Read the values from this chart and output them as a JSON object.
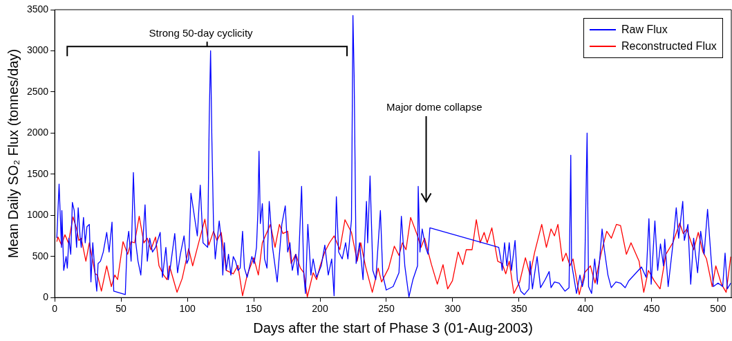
{
  "chart_data": {
    "type": "line",
    "xlabel": "Days after the start of Phase 3 (01-Aug-2003)",
    "ylabel": "Mean Daily SO₂ Flux (tonnes/day)",
    "xlim": [
      0,
      510
    ],
    "ylim": [
      0,
      3500
    ],
    "xticks": [
      0,
      50,
      100,
      150,
      200,
      250,
      300,
      350,
      400,
      450,
      500
    ],
    "yticks": [
      0,
      500,
      1000,
      1500,
      2000,
      2500,
      3000,
      3500
    ],
    "grid": false,
    "legend": "top right",
    "marker": "none",
    "line_style": "solid",
    "series": [
      {
        "name": "Raw Flux",
        "color": "#0000ff",
        "x": [
          1.6,
          3.3,
          5.1,
          5.4,
          6.8,
          8.6,
          9.5,
          10.7,
          12.1,
          13.3,
          14.7,
          16.5,
          17.7,
          19.1,
          20,
          21.7,
          23,
          24.3,
          26.1,
          27.3,
          28.7,
          30.5,
          31.7,
          32.7,
          34.5,
          36.6,
          39.2,
          41,
          43.2,
          44.5,
          53.2,
          54.6,
          55.8,
          57.6,
          59.3,
          61.1,
          62.8,
          64.9,
          68.1,
          69.8,
          71.6,
          73.7,
          76,
          79.5,
          81.2,
          83.8,
          85.6,
          87.3,
          90.5,
          92.6,
          94.7,
          97.5,
          99.6,
          101,
          102.7,
          107.5,
          109.7,
          111.8,
          115.3,
          116.5,
          117.5,
          118.5,
          119.7,
          121,
          124,
          125.8,
          126.7,
          127.9,
          129.3,
          131,
          132.8,
          134.6,
          136.3,
          138.1,
          139.8,
          141.6,
          143,
          145.1,
          148.6,
          150.3,
          152.1,
          153.2,
          154,
          155,
          156.5,
          158.2,
          160,
          161.7,
          164.2,
          167.7,
          171.2,
          173.8,
          175.6,
          177.3,
          179.1,
          181.7,
          183.4,
          186.1,
          187.8,
          189,
          190.8,
          193.1,
          194.8,
          197.4,
          200.9,
          203.6,
          206.2,
          208.8,
          210.6,
          212.3,
          214,
          216.7,
          219.3,
          221,
          223.7,
          224.8,
          225.7,
          227.2,
          229.8,
          232.4,
          235,
          235.9,
          237.7,
          239.8,
          242,
          245.5,
          247.3,
          249.9,
          255.1,
          259.5,
          261.3,
          263.9,
          267,
          270,
          273.5,
          274,
          275.3,
          277,
          279.6,
          281.4,
          282.8,
          334.7,
          336.5,
          337.3,
          339.1,
          340.8,
          342.6,
          344.3,
          347,
          348.7,
          351.3,
          354,
          357.5,
          358.3,
          360.1,
          363.6,
          366.2,
          369.7,
          372.7,
          374.1,
          376.7,
          380.2,
          384.6,
          387.7,
          389,
          389.6,
          393.3,
          395.9,
          397.7,
          399.4,
          401.3,
          402.4,
          404.7,
          407,
          409,
          410.8,
          412.6,
          414.3,
          417,
          419.5,
          423,
          426.5,
          430,
          432.7,
          442.3,
          445.8,
          447.9,
          449.6,
          452.4,
          454.5,
          456.6,
          458.9,
          459.8,
          462.4,
          465.9,
          468.5,
          470.3,
          473.4,
          474.6,
          477.3,
          479.4,
          481.6,
          484.6,
          486.9,
          489.5,
          492.1,
          494.8,
          496.5,
          500,
          503.5,
          505.3,
          507,
          509.6
        ],
        "values": [
          722,
          1380,
          610,
          1058,
          330,
          498,
          358,
          722,
          526,
          1156,
          1058,
          610,
          1092,
          750,
          610,
          974,
          666,
          862,
          890,
          190,
          666,
          274,
          78,
          414,
          442,
          554,
          792,
          554,
          918,
          78,
          36,
          666,
          806,
          442,
          1520,
          666,
          442,
          274,
          1128,
          442,
          722,
          554,
          610,
          792,
          246,
          610,
          218,
          386,
          778,
          302,
          526,
          750,
          414,
          470,
          1268,
          750,
          1366,
          666,
          610,
          2200,
          3000,
          1900,
          890,
          470,
          932,
          666,
          274,
          666,
          330,
          526,
          274,
          498,
          442,
          330,
          358,
          806,
          358,
          246,
          498,
          414,
          610,
          1058,
          1780,
          900,
          1142,
          470,
          358,
          1170,
          610,
          190,
          890,
          1114,
          554,
          666,
          330,
          526,
          274,
          1352,
          274,
          50,
          890,
          274,
          470,
          246,
          386,
          638,
          274,
          470,
          22,
          1226,
          554,
          470,
          666,
          470,
          946,
          3430,
          2700,
          414,
          666,
          218,
          1170,
          666,
          1478,
          330,
          218,
          1058,
          274,
          92,
          134,
          302,
          988,
          386,
          8,
          218,
          386,
          1352,
          554,
          834,
          610,
          526,
          848,
          610,
          442,
          330,
          666,
          386,
          666,
          330,
          694,
          218,
          78,
          36,
          106,
          442,
          106,
          498,
          120,
          218,
          316,
          120,
          190,
          176,
          78,
          120,
          1730,
          414,
          50,
          274,
          134,
          246,
          2000,
          134,
          50,
          470,
          162,
          470,
          834,
          582,
          274,
          120,
          190,
          176,
          120,
          204,
          372,
          246,
          960,
          162,
          932,
          330,
          652,
          386,
          708,
          134,
          638,
          1092,
          722,
          1170,
          694,
          890,
          162,
          722,
          302,
          806,
          526,
          1072,
          470,
          134,
          176,
          134,
          540,
          106,
          176
        ]
      },
      {
        "name": "Reconstructed Flux",
        "color": "#ff0000",
        "x": [
          1.6,
          2.5,
          5.1,
          7.7,
          10.3,
          13.8,
          16.5,
          18.2,
          20,
          23.5,
          26.1,
          30.5,
          32.2,
          35.2,
          39.2,
          42.7,
          45.3,
          47.4,
          51.5,
          55,
          57.6,
          60.2,
          63.7,
          67.2,
          69.8,
          72.5,
          76,
          78.6,
          82.1,
          84.7,
          86.5,
          92.2,
          96.1,
          101,
          104,
          108.3,
          113.2,
          116.2,
          119.7,
          122.3,
          125.5,
          129.3,
          134.6,
          138.1,
          141.6,
          145.1,
          150,
          153.5,
          156.5,
          162.6,
          166.1,
          169.4,
          172,
          175.6,
          178.2,
          181.7,
          185.2,
          187.8,
          190.4,
          194.8,
          197.4,
          200.1,
          203.6,
          207.1,
          210.6,
          214.9,
          218.8,
          223.7,
          228,
          230.7,
          234.2,
          239.4,
          243.8,
          246.4,
          251.7,
          256,
          259.5,
          262.1,
          264.8,
          268.3,
          273.5,
          276.1,
          278.8,
          284,
          288.4,
          292.7,
          296.2,
          299.8,
          304.1,
          307.6,
          310.2,
          314.6,
          317.8,
          320.7,
          323.7,
          326,
          329.5,
          333.9,
          337.3,
          340,
          342.6,
          346.1,
          350.5,
          354.8,
          358.3,
          361.8,
          367.1,
          370.6,
          374.1,
          376.7,
          379.3,
          382.8,
          385.4,
          388.4,
          390.7,
          395.4,
          399.4,
          403.8,
          407.3,
          411.7,
          416.1,
          419.6,
          423.4,
          426.5,
          430.9,
          434.4,
          440.5,
          444,
          447.5,
          451.9,
          456.3,
          460.7,
          465.9,
          471.1,
          473.8,
          476.4,
          481.6,
          485.1,
          488.6,
          491.3,
          495.6,
          498.3,
          502.6,
          506.1,
          509.6
        ],
        "values": [
          680,
          736,
          638,
          764,
          666,
          980,
          834,
          694,
          722,
          442,
          666,
          288,
          274,
          78,
          386,
          134,
          274,
          218,
          680,
          526,
          680,
          666,
          988,
          666,
          722,
          582,
          736,
          386,
          274,
          218,
          386,
          64,
          232,
          596,
          386,
          652,
          952,
          638,
          806,
          694,
          792,
          330,
          288,
          392,
          22,
          274,
          484,
          274,
          666,
          890,
          610,
          890,
          778,
          806,
          414,
          526,
          358,
          302,
          8,
          302,
          218,
          386,
          554,
          666,
          750,
          582,
          946,
          792,
          442,
          666,
          386,
          64,
          358,
          190,
          358,
          624,
          512,
          666,
          582,
          974,
          750,
          610,
          722,
          400,
          162,
          400,
          106,
          204,
          554,
          400,
          582,
          582,
          946,
          666,
          792,
          666,
          848,
          442,
          414,
          288,
          442,
          50,
          190,
          484,
          274,
          554,
          890,
          610,
          834,
          750,
          890,
          442,
          540,
          386,
          470,
          36,
          302,
          386,
          176,
          526,
          806,
          722,
          890,
          876,
          526,
          666,
          442,
          64,
          330,
          204,
          106,
          526,
          666,
          904,
          778,
          834,
          582,
          792,
          554,
          470,
          134,
          386,
          162,
          64,
          498
        ]
      }
    ],
    "annotations": [
      "Strong 50-day cyclicity",
      "Major dome collapse"
    ]
  }
}
